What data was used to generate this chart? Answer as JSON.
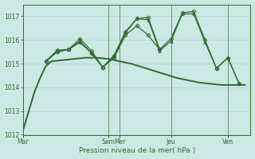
{
  "background_color": "#cce8e4",
  "grid_color": "#aad4cf",
  "line_color": "#2d6b2d",
  "xlabel": "Pression niveau de la mer( hPa )",
  "ylim": [
    1012,
    1017.5
  ],
  "yticks": [
    1012,
    1013,
    1014,
    1015,
    1016,
    1017
  ],
  "xtick_labels": [
    "Mar",
    "Sam",
    "Mer",
    "Jeu",
    "Ven"
  ],
  "xtick_positions": [
    0,
    15,
    17,
    26,
    36
  ],
  "xlim": [
    0,
    40
  ],
  "vlines": [
    15,
    17,
    26,
    36
  ],
  "lines": [
    {
      "x": [
        0,
        1,
        2,
        3,
        4,
        5,
        7,
        9,
        11,
        13,
        15,
        17,
        19,
        21,
        23,
        25,
        27,
        29,
        31,
        33,
        35,
        37,
        39
      ],
      "y": [
        1012.2,
        1013.0,
        1013.8,
        1014.4,
        1014.9,
        1015.1,
        1015.15,
        1015.2,
        1015.25,
        1015.25,
        1015.2,
        1015.1,
        1015.0,
        1014.85,
        1014.7,
        1014.55,
        1014.4,
        1014.3,
        1014.2,
        1014.15,
        1014.1,
        1014.1,
        1014.1
      ],
      "style": "-",
      "marker": null,
      "lw": 1.4
    },
    {
      "x": [
        4,
        6,
        8,
        10,
        12,
        14,
        16,
        18,
        20,
        22,
        24,
        26,
        28,
        30,
        32,
        34,
        36,
        38
      ],
      "y": [
        1015.1,
        1015.57,
        1015.6,
        1016.05,
        1015.55,
        1014.85,
        1015.35,
        1016.35,
        1016.9,
        1016.95,
        1015.6,
        1016.05,
        1017.15,
        1017.2,
        1016.0,
        1014.8,
        1015.25,
        1014.15
      ],
      "style": "-",
      "marker": "D",
      "lw": 0.9
    },
    {
      "x": [
        4,
        6,
        8,
        10,
        12,
        14,
        16,
        18,
        20,
        22,
        24,
        26,
        28,
        30,
        32,
        34,
        36,
        38
      ],
      "y": [
        1015.1,
        1015.5,
        1015.6,
        1015.95,
        1015.45,
        1014.85,
        1015.3,
        1016.3,
        1016.9,
        1016.85,
        1015.55,
        1015.95,
        1017.1,
        1017.1,
        1015.9,
        1014.8,
        1015.25,
        1014.15
      ],
      "style": "-",
      "marker": "^",
      "lw": 0.9
    },
    {
      "x": [
        4,
        6,
        8,
        10,
        12,
        14,
        16,
        18,
        20,
        22,
        24
      ],
      "y": [
        1015.1,
        1015.5,
        1015.6,
        1015.9,
        1015.45,
        1014.85,
        1015.25,
        1016.2,
        1016.6,
        1016.2,
        1015.6
      ],
      "style": "-",
      "marker": "D",
      "lw": 0.9
    }
  ],
  "figsize": [
    3.2,
    2.0
  ],
  "dpi": 100
}
